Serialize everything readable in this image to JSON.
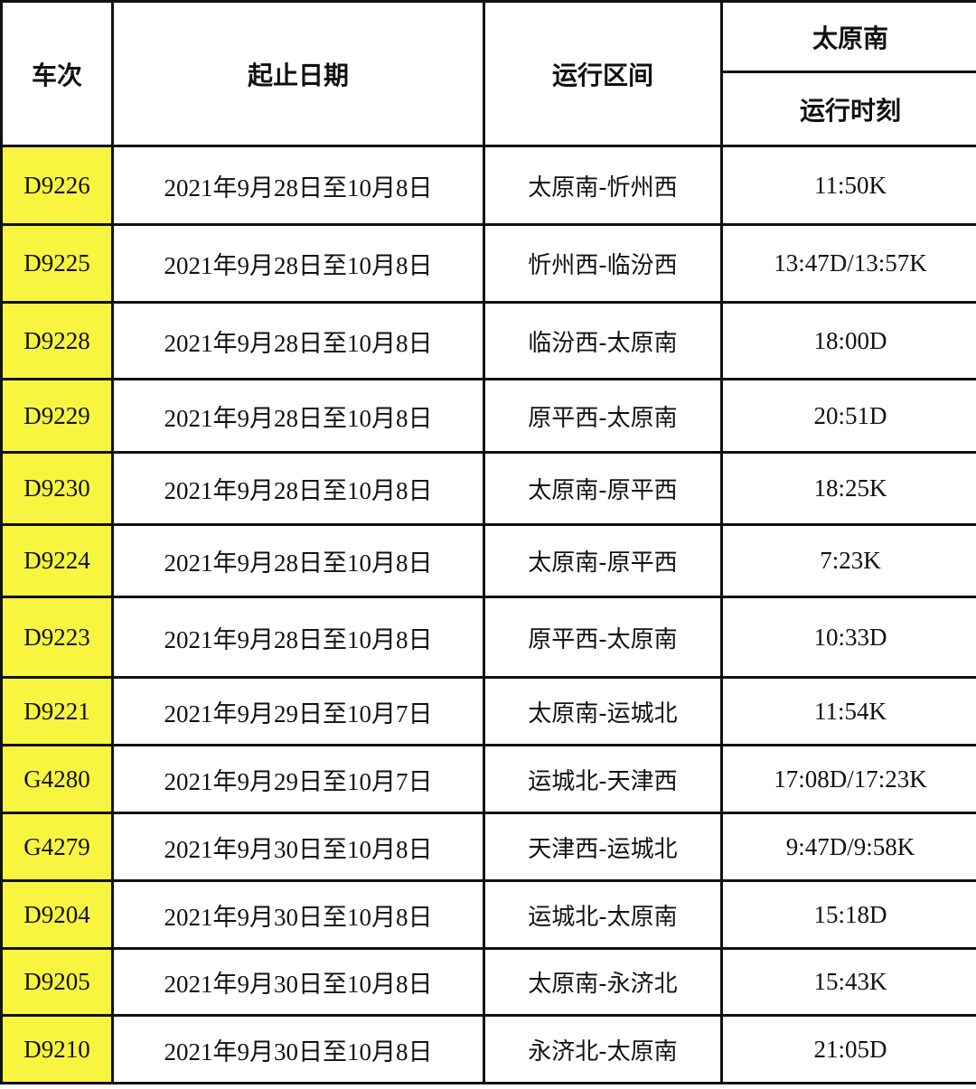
{
  "header": {
    "train": "车次",
    "dates": "起止日期",
    "section": "运行区间",
    "station": "太原南",
    "time": "运行时刻"
  },
  "colors": {
    "train_highlight": "#f7f540",
    "border": "#111111"
  },
  "rows": [
    {
      "train": "D9226",
      "dates": "2021年9月28日至10月8日",
      "section": "太原南-忻州西",
      "time": "11:50K"
    },
    {
      "train": "D9225",
      "dates": "2021年9月28日至10月8日",
      "section": "忻州西-临汾西",
      "time": "13:47D/13:57K"
    },
    {
      "train": "D9228",
      "dates": "2021年9月28日至10月8日",
      "section": "临汾西-太原南",
      "time": "18:00D"
    },
    {
      "train": "D9229",
      "dates": "2021年9月28日至10月8日",
      "section": "原平西-太原南",
      "time": "20:51D"
    },
    {
      "train": "D9230",
      "dates": "2021年9月28日至10月8日",
      "section": "太原南-原平西",
      "time": "18:25K"
    },
    {
      "train": "D9224",
      "dates": "2021年9月28日至10月8日",
      "section": "太原南-原平西",
      "time": "7:23K"
    },
    {
      "train": "D9223",
      "dates": "2021年9月28日至10月8日",
      "section": "原平西-太原南",
      "time": "10:33D"
    },
    {
      "train": "D9221",
      "dates": "2021年9月29日至10月7日",
      "section": "太原南-运城北",
      "time": "11:54K"
    },
    {
      "train": "G4280",
      "dates": "2021年9月29日至10月7日",
      "section": "运城北-天津西",
      "time": "17:08D/17:23K"
    },
    {
      "train": "G4279",
      "dates": "2021年9月30日至10月8日",
      "section": "天津西-运城北",
      "time": "9:47D/9:58K"
    },
    {
      "train": "D9204",
      "dates": "2021年9月30日至10月8日",
      "section": "运城北-太原南",
      "time": "15:18D"
    },
    {
      "train": "D9205",
      "dates": "2021年9月30日至10月8日",
      "section": "太原南-永济北",
      "time": "15:43K"
    },
    {
      "train": "D9210",
      "dates": "2021年9月30日至10月8日",
      "section": "永济北-太原南",
      "time": "21:05D"
    }
  ]
}
